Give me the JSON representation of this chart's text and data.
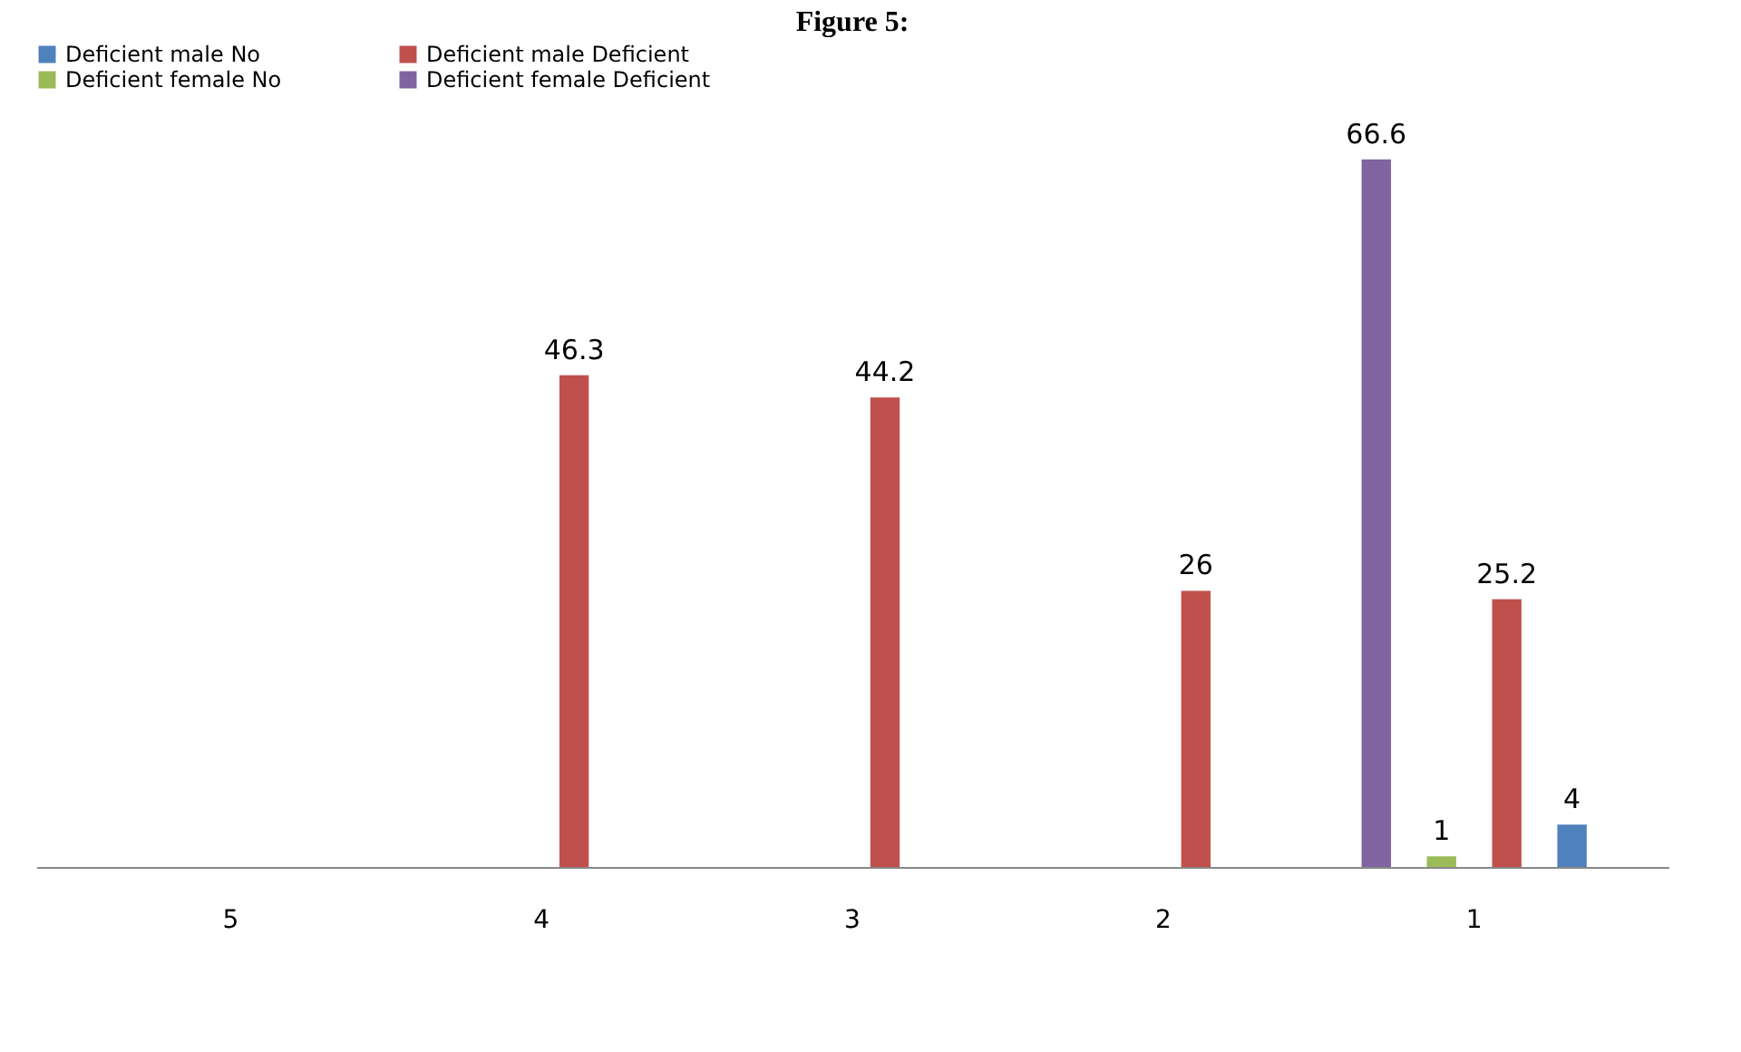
{
  "chart_data": {
    "type": "bar",
    "title": "Figure 5:",
    "categories": [
      "5",
      "4",
      "3",
      "2",
      "1"
    ],
    "series": [
      {
        "name": "Deficient male  No",
        "color": "#4f81bd",
        "values": [
          null,
          null,
          null,
          null,
          4
        ]
      },
      {
        "name": "Deficient male  Deficient",
        "color": "#c0504d",
        "values": [
          null,
          46.3,
          44.2,
          26,
          25.2
        ]
      },
      {
        "name": "Deficient female  No",
        "color": "#9bbb59",
        "values": [
          null,
          null,
          null,
          null,
          1
        ]
      },
      {
        "name": "Deficient female  Deficient",
        "color": "#8064a2",
        "values": [
          null,
          null,
          null,
          null,
          66.6
        ]
      }
    ],
    "data_labels": true,
    "legend": "top",
    "grid": false
  }
}
